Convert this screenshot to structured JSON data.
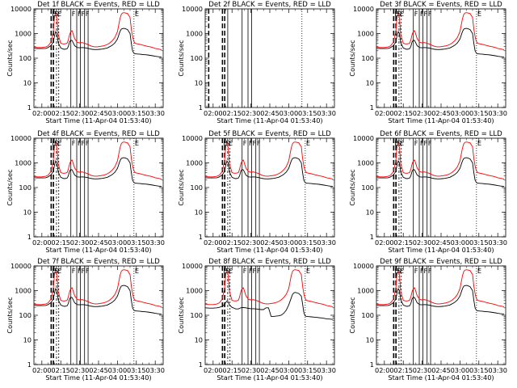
{
  "page": {
    "background": "#ffffff",
    "colors": {
      "events": "#000000",
      "lld": "#ff0000"
    }
  },
  "chart_data": {
    "type": "line",
    "layout": "3x3 grid of panels",
    "shared": {
      "xlabel": "Start Time (11-Apr-04 01:53:40)",
      "ylabel": "Counts/sec",
      "x_ticks": [
        "02:00",
        "02:15",
        "02:30",
        "02:45",
        "03:00",
        "03:15",
        "03:30"
      ],
      "x_tick_minutes": [
        0,
        15,
        30,
        45,
        60,
        75,
        90
      ],
      "xlim_minutes": [
        -6.3,
        96.3
      ],
      "y_scale": "log",
      "ylim": [
        1,
        10000
      ],
      "y_ticks": [
        "1",
        "10",
        "100",
        "1000",
        "10000"
      ],
      "y_tick_values": [
        1,
        10,
        100,
        1000,
        10000
      ],
      "legend_text": "BLACK = Events, RED = LLD",
      "grid": false
    },
    "panels": [
      {
        "title": "Det  1f  BLACK = Events,  RED = LLD",
        "show_series": true,
        "shape": "full"
      },
      {
        "title": "Det  2f  BLACK = Events,  RED = LLD",
        "show_series": false,
        "shape": "full"
      },
      {
        "title": "Det  3f  BLACK = Events,  RED = LLD",
        "show_series": true,
        "shape": "full"
      },
      {
        "title": "Det  4f  BLACK = Events,  RED = LLD",
        "show_series": true,
        "shape": "full"
      },
      {
        "title": "Det  5f  BLACK = Events,  RED = LLD",
        "show_series": true,
        "shape": "full"
      },
      {
        "title": "Det  6f  BLACK = Events,  RED = LLD",
        "show_series": true,
        "shape": "full"
      },
      {
        "title": "Det  7f  BLACK = Events,  RED = LLD",
        "show_series": true,
        "shape": "full"
      },
      {
        "title": "Det  8f  BLACK = Events,  RED = LLD",
        "show_series": true,
        "shape": "low_black"
      },
      {
        "title": "Det  9f  BLACK = Events,  RED = LLD",
        "show_series": true,
        "shape": "full"
      }
    ],
    "series_x_minutes": [
      -6,
      -3,
      0,
      3,
      5,
      7,
      9,
      10,
      11,
      12,
      13,
      15,
      17,
      18,
      20,
      21,
      22,
      23,
      24,
      26,
      28,
      30,
      32,
      34,
      36,
      38,
      40,
      42,
      44,
      46,
      48,
      50,
      52,
      54,
      56,
      58,
      60,
      62,
      63,
      64,
      65,
      66,
      68,
      70,
      71,
      72,
      73,
      74,
      76,
      78,
      80,
      82,
      84,
      86,
      88,
      90,
      92,
      95
    ],
    "series": [
      {
        "name": "LLD",
        "color": "#ff0000",
        "values": [
          280,
          270,
          270,
          285,
          320,
          430,
          1100,
          4500,
          8000,
          4000,
          900,
          400,
          380,
          380,
          400,
          550,
          900,
          1200,
          1300,
          620,
          440,
          420,
          430,
          400,
          370,
          330,
          300,
          290,
          290,
          300,
          310,
          330,
          360,
          420,
          520,
          700,
          1200,
          4000,
          6000,
          6800,
          7000,
          6900,
          6500,
          4500,
          1600,
          750,
          480,
          400,
          380,
          360,
          340,
          320,
          300,
          290,
          270,
          250,
          240,
          220
        ]
      },
      {
        "name": "Events",
        "color": "#000000",
        "values": [
          250,
          245,
          245,
          250,
          270,
          320,
          440,
          800,
          1200,
          1000,
          420,
          260,
          235,
          230,
          240,
          300,
          460,
          540,
          520,
          320,
          270,
          265,
          270,
          265,
          255,
          240,
          230,
          225,
          225,
          230,
          235,
          245,
          260,
          295,
          340,
          420,
          600,
          1200,
          1500,
          1600,
          1620,
          1600,
          1450,
          1000,
          420,
          200,
          160,
          150,
          148,
          145,
          140,
          138,
          135,
          130,
          125,
          120,
          115,
          110
        ]
      },
      {
        "name": "Events",
        "color": "#000000",
        "values": [
          200,
          195,
          195,
          200,
          210,
          230,
          270,
          330,
          380,
          350,
          260,
          210,
          190,
          180,
          180,
          190,
          200,
          205,
          205,
          200,
          190,
          185,
          185,
          180,
          175,
          170,
          170,
          200,
          200,
          90,
          90,
          92,
          95,
          100,
          120,
          160,
          260,
          500,
          700,
          800,
          850,
          830,
          760,
          600,
          300,
          130,
          95,
          90,
          88,
          86,
          84,
          82,
          80,
          78,
          75,
          72,
          70,
          68
        ]
      }
    ],
    "vertical_markers": [
      {
        "x_minutes": 7.4,
        "style": "dash-long",
        "label": "E"
      },
      {
        "x_minutes": 9.2,
        "style": "dash-long",
        "label": "S"
      },
      {
        "x_minutes": 11.6,
        "style": "dash-dot",
        "label": "E"
      },
      {
        "x_minutes": 13.4,
        "style": "dash-short",
        "label": ""
      },
      {
        "x_minutes": 23.0,
        "style": "solid",
        "label": "F"
      },
      {
        "x_minutes": 27.7,
        "style": "solid",
        "label": "F"
      },
      {
        "x_minutes": 30.6,
        "style": "solid",
        "label": "F"
      },
      {
        "x_minutes": 33.9,
        "style": "solid",
        "label": "F"
      },
      {
        "x_minutes": 36.7,
        "style": "solid",
        "label": ""
      },
      {
        "x_minutes": 73.1,
        "style": "dotted",
        "label": "E"
      }
    ],
    "panel2_markers_x_minutes": [
      -3.5,
      7.4,
      9.2,
      11.6,
      23.0,
      27.7,
      30.6,
      70.5
    ]
  }
}
